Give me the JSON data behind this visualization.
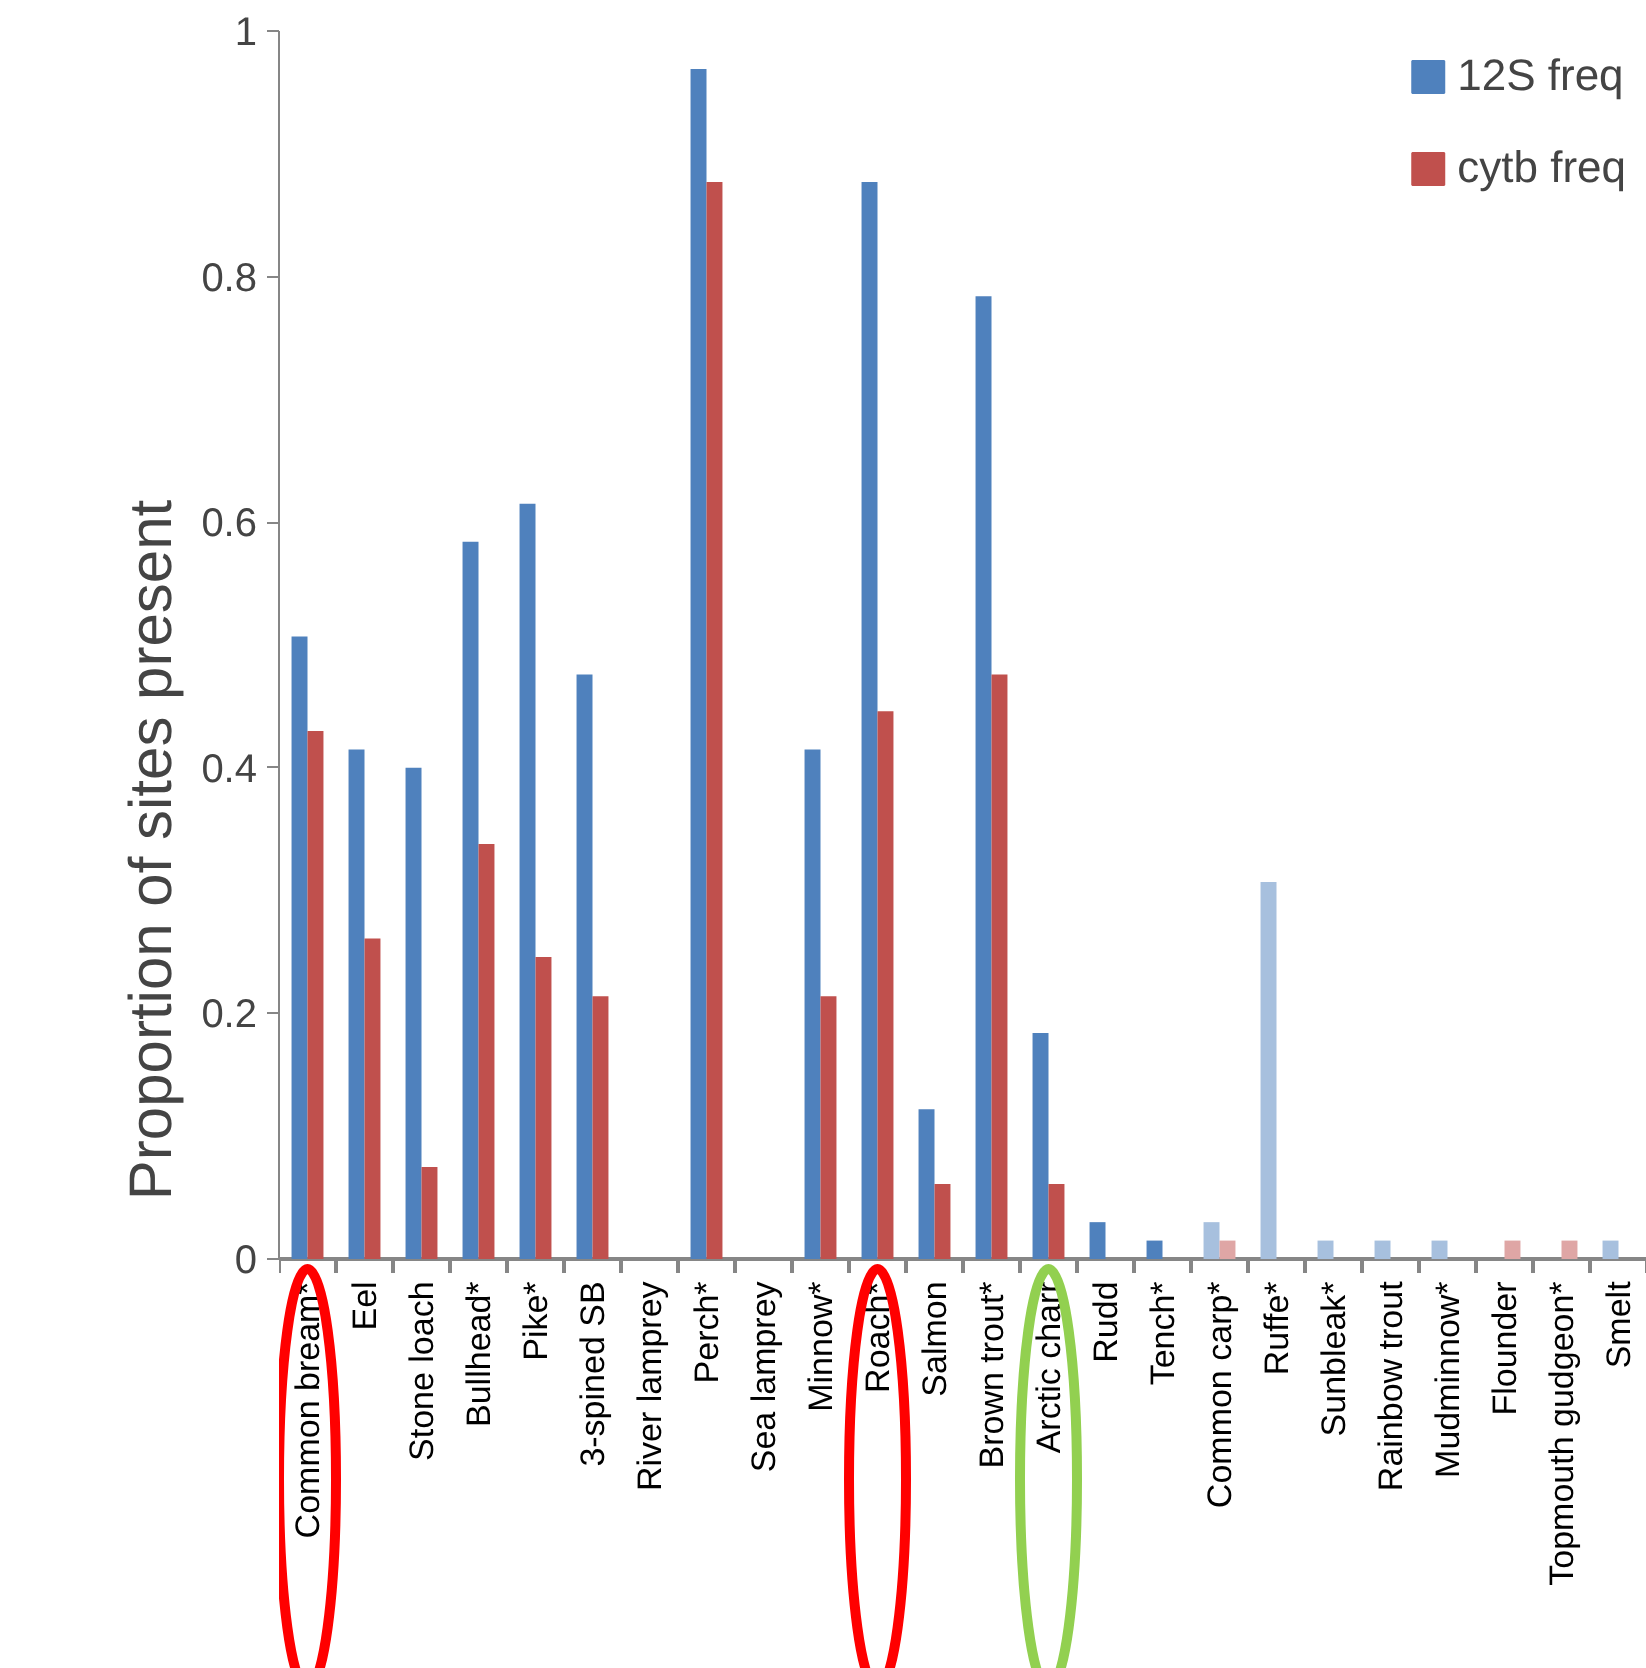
{
  "chart_data": {
    "type": "bar",
    "ylabel": "Proportion of sites present",
    "categories": [
      "Common bream*",
      "Eel",
      "Stone loach",
      "Bullhead*",
      "Pike*",
      "3-spined SB",
      "River lamprey",
      "Perch*",
      "Sea lamprey",
      "Minnow*",
      "Roach*",
      "Salmon",
      "Brown trout*",
      "Arctic charr",
      "Rudd",
      "Tench*",
      "Common carp*",
      "Ruffe*",
      "Sunbleak*",
      "Rainbow trout",
      "Mudminnow*",
      "Flounder",
      "Topmouth gudgeon*",
      "Smelt"
    ],
    "series": [
      {
        "name": "12S freq",
        "color": "#4f81bd",
        "values": [
          0.507,
          0.415,
          0.4,
          0.584,
          0.615,
          0.476,
          0,
          0.969,
          0,
          0.415,
          0.877,
          0.122,
          0.784,
          0.184,
          0.03,
          0.015,
          0.03,
          0.307,
          0.015,
          0.015,
          0.015,
          0,
          0,
          0.015
        ],
        "colors": [
          "#4f81bd",
          "#4f81bd",
          "#4f81bd",
          "#4f81bd",
          "#4f81bd",
          "#4f81bd",
          "#4f81bd",
          "#4f81bd",
          "#4f81bd",
          "#4f81bd",
          "#4f81bd",
          "#4f81bd",
          "#4f81bd",
          "#4f81bd",
          "#4f81bd",
          "#4f81bd",
          "#a7c0de",
          "#a7c0de",
          "#a7c0de",
          "#a7c0de",
          "#a7c0de",
          "#a7c0de",
          "#a7c0de",
          "#a7c0de"
        ]
      },
      {
        "name": "cytb freq",
        "color": "#c0504d",
        "values": [
          0.43,
          0.261,
          0.075,
          0.338,
          0.246,
          0.214,
          0,
          0.877,
          0,
          0.214,
          0.446,
          0.061,
          0.476,
          0.061,
          0,
          0,
          0.015,
          0,
          0,
          0,
          0,
          0.015,
          0.015,
          0
        ],
        "colors": [
          "#c0504d",
          "#c0504d",
          "#c0504d",
          "#c0504d",
          "#c0504d",
          "#c0504d",
          "#c0504d",
          "#c0504d",
          "#c0504d",
          "#c0504d",
          "#c0504d",
          "#c0504d",
          "#c0504d",
          "#c0504d",
          "#c0504d",
          "#c0504d",
          "#dfa6a5",
          "#dfa6a5",
          "#dfa6a5",
          "#dfa6a5",
          "#dfa6a5",
          "#dfa6a5",
          "#dfa6a5",
          "#dfa6a5"
        ]
      }
    ],
    "ylim": [
      0,
      1
    ],
    "yticks": [
      0,
      0.2,
      0.4,
      0.6,
      0.8,
      1
    ],
    "grid": false,
    "legend": "top right"
  }
}
